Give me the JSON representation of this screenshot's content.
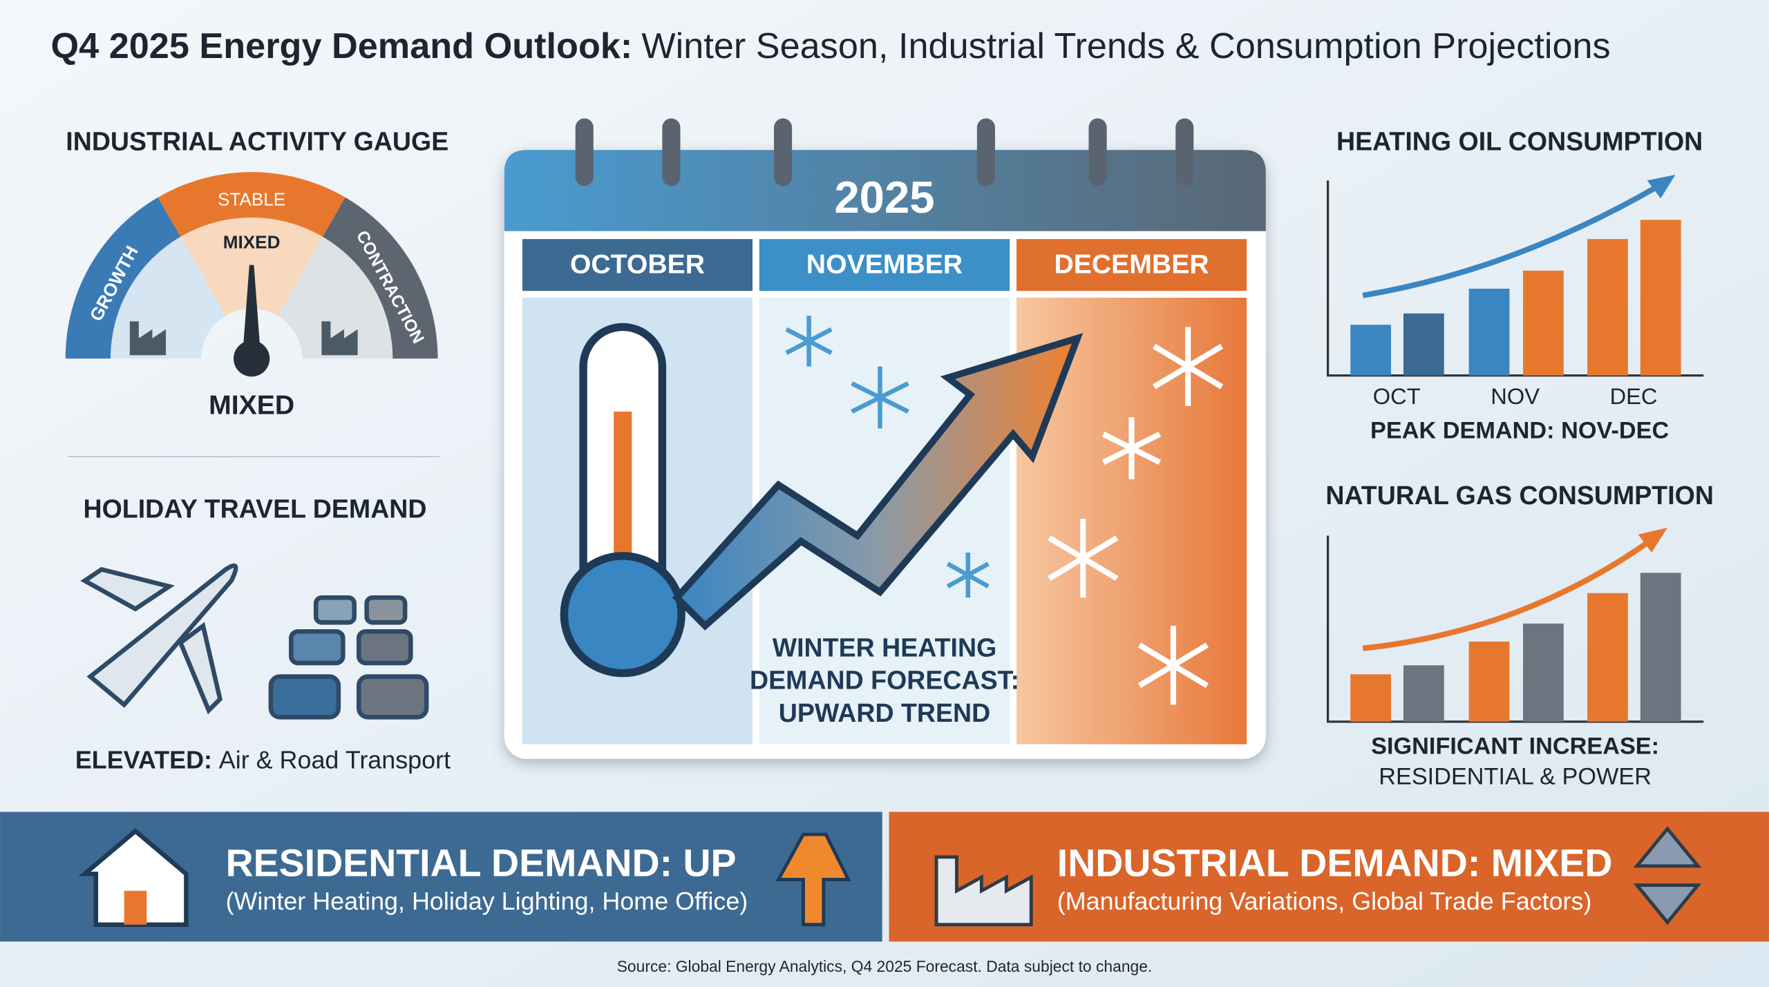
{
  "title": {
    "bold": "Q4 2025 Energy Demand Outlook:",
    "rest": "Winter Season, Industrial Trends & Consumption Projections"
  },
  "gauge": {
    "title": "INDUSTRIAL ACTIVITY GAUGE",
    "segments": [
      "GROWTH",
      "STABLE",
      "CONTRACTION"
    ],
    "needle_label": "MIXED",
    "reading": "MIXED"
  },
  "travel": {
    "title": "HOLIDAY TRAVEL DEMAND",
    "note_bold": "ELEVATED:",
    "note": "Air & Road Transport"
  },
  "calendar": {
    "year": "2025",
    "months": [
      "OCTOBER",
      "NOVEMBER",
      "DECEMBER"
    ],
    "caption": [
      "WINTER HEATING",
      "DEMAND FORECAST:",
      "UPWARD TREND"
    ]
  },
  "heating_oil": {
    "title": "HEATING OIL CONSUMPTION",
    "labels": [
      "OCT",
      "NOV",
      "DEC"
    ],
    "note": "PEAK DEMAND: NOV-DEC"
  },
  "natural_gas": {
    "title": "NATURAL GAS CONSUMPTION",
    "note": [
      "SIGNIFICANT INCREASE:",
      "RESIDENTIAL & POWER"
    ]
  },
  "banners": [
    {
      "title": "RESIDENTIAL DEMAND: UP",
      "detail": "(Winter Heating, Holiday Lighting, Home Office)"
    },
    {
      "title": "INDUSTRIAL DEMAND: MIXED",
      "detail": "(Manufacturing Variations, Global Trade Factors)"
    }
  ],
  "source": "Source: Global Energy Analytics, Q4 2025 Forecast. Data subject to change."
}
